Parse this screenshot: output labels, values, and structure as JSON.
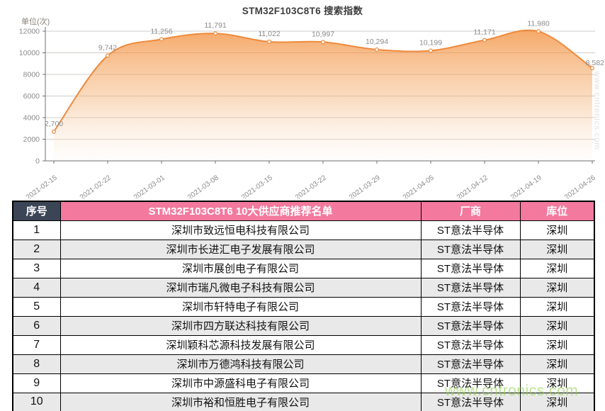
{
  "chart_data": {
    "type": "area",
    "title": "STM32F103C8T6 搜索指数",
    "unit_label": "单位(次)",
    "x": [
      "2021-02-15",
      "2021-02-22",
      "2021-03-01",
      "2021-03-08",
      "2021-03-15",
      "2021-03-22",
      "2021-03-29",
      "2021-04-05",
      "2021-04-12",
      "2021-04-19",
      "2021-04-26"
    ],
    "values": [
      2700,
      9742,
      11256,
      11791,
      11022,
      10997,
      10294,
      10199,
      11171,
      11980,
      8582
    ],
    "value_labels": [
      "2,700",
      "9,742",
      "11,256",
      "11,791",
      "11,022",
      "10,997",
      "10,294",
      "10,199",
      "11,171",
      "11,980",
      "8,582"
    ],
    "ylim": [
      0,
      12000
    ],
    "ytick_step": 2000,
    "yticks": [
      "0",
      "2000",
      "4000",
      "6000",
      "8000",
      "10000",
      "12000"
    ],
    "grid": true,
    "legend": "none",
    "line_color": "#ee8a3c",
    "fill_top_color": "#f49a4f",
    "fill_bottom_color": "#fdf5ee",
    "label_color": "#8a8a8a",
    "axis_color": "#707070"
  },
  "table": {
    "headers": {
      "index": "序号",
      "supplier": "STM32F103C8T6   10大供应商推荐名单",
      "vendor": "厂商",
      "location": "库位"
    },
    "header_index_bg": "#3b4556",
    "header_main_bg": "#f3799e",
    "rows": [
      {
        "no": "1",
        "supplier": "深圳市致远恒电科技有限公司",
        "vendor": "ST意法半导体",
        "location": "深圳"
      },
      {
        "no": "2",
        "supplier": "深圳市长进汇电子发展有限公司",
        "vendor": "ST意法半导体",
        "location": "深圳"
      },
      {
        "no": "3",
        "supplier": "深圳市展创电子有限公司",
        "vendor": "ST意法半导体",
        "location": "深圳"
      },
      {
        "no": "4",
        "supplier": "深圳市瑞凡微电子科技有限公司",
        "vendor": "ST意法半导体",
        "location": "深圳"
      },
      {
        "no": "5",
        "supplier": "深圳市轩特电子有限公司",
        "vendor": "ST意法半导体",
        "location": "深圳"
      },
      {
        "no": "6",
        "supplier": "深圳市四方联达科技有限公司",
        "vendor": "ST意法半导体",
        "location": "深圳"
      },
      {
        "no": "7",
        "supplier": "深圳颖科芯源科技发展有限公司",
        "vendor": "ST意法半导体",
        "location": "深圳"
      },
      {
        "no": "8",
        "supplier": "深圳市万德鸿科技有限公司",
        "vendor": "ST意法半导体",
        "location": "深圳"
      },
      {
        "no": "9",
        "supplier": "深圳市中源盛科电子有限公司",
        "vendor": "ST意法半导体",
        "location": "深圳"
      },
      {
        "no": "10",
        "supplier": "深圳市裕和恒胜电子有限公司",
        "vendor": "ST意法半导体",
        "location": "深圳"
      }
    ]
  },
  "watermark": {
    "text": "www.cntronics.com",
    "color": "#92d050"
  }
}
